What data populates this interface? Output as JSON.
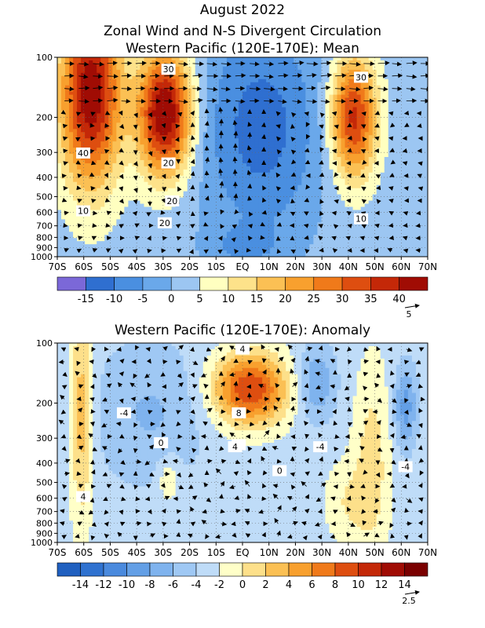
{
  "titles": {
    "main": "August 2022",
    "top": "Zonal Wind and N-S Divergent Circulation",
    "top_sub": "Western Pacific (120E-170E): Mean",
    "bottom": "Western Pacific (120E-170E): Anomaly"
  },
  "chart_data": [
    {
      "type": "heatmap",
      "title": "Zonal Wind and N-S Divergent Circulation",
      "subtitle": "Western Pacific (120E-170E): Mean",
      "x_ticks": [
        "70S",
        "60S",
        "50S",
        "40S",
        "30S",
        "20S",
        "10S",
        "EQ",
        "10N",
        "20N",
        "30N",
        "40N",
        "50N",
        "60N",
        "70N"
      ],
      "y_ticks": [
        100,
        200,
        300,
        400,
        500,
        600,
        700,
        800,
        900,
        1000
      ],
      "colorbar": {
        "labels": [
          "-15",
          "-10",
          "-5",
          "0",
          "5",
          "10",
          "15",
          "20",
          "25",
          "30",
          "35",
          "40"
        ],
        "colors": [
          "#7b68d8",
          "#2f6fd0",
          "#4a8fe0",
          "#6aa8ea",
          "#9cc6f2",
          "#ffffc0",
          "#fde28a",
          "#fbc054",
          "#f8a02e",
          "#f07a1a",
          "#de4e10",
          "#c42808",
          "#a00c04"
        ]
      },
      "reference_vector": "5",
      "contour_labels": [
        "30",
        "30",
        "40",
        "20",
        "20",
        "10",
        "20",
        "10"
      ]
    },
    {
      "type": "heatmap",
      "title": "Western Pacific (120E-170E): Anomaly",
      "x_ticks": [
        "70S",
        "60S",
        "50S",
        "40S",
        "30S",
        "20S",
        "10S",
        "EQ",
        "10N",
        "20N",
        "30N",
        "40N",
        "50N",
        "60N",
        "70N"
      ],
      "y_ticks": [
        100,
        200,
        300,
        400,
        500,
        600,
        700,
        800,
        900,
        1000
      ],
      "colorbar": {
        "labels": [
          "-14",
          "-12",
          "-10",
          "-8",
          "-6",
          "-4",
          "-2",
          "0",
          "2",
          "4",
          "6",
          "8",
          "10",
          "12",
          "14"
        ],
        "colors": [
          "#2060c0",
          "#2f72d0",
          "#4a8ade",
          "#639fe6",
          "#7fb3ee",
          "#9fc8f4",
          "#bfdcf8",
          "#ffffc8",
          "#fde08a",
          "#fbc054",
          "#f8a02e",
          "#f07a1a",
          "#de4e10",
          "#c42808",
          "#a00c04",
          "#7a0000"
        ]
      },
      "reference_vector": "2.5",
      "contour_labels": [
        "4",
        "-4",
        "0",
        "4",
        "8",
        "4",
        "0",
        "-4",
        "-4",
        "4"
      ]
    }
  ]
}
